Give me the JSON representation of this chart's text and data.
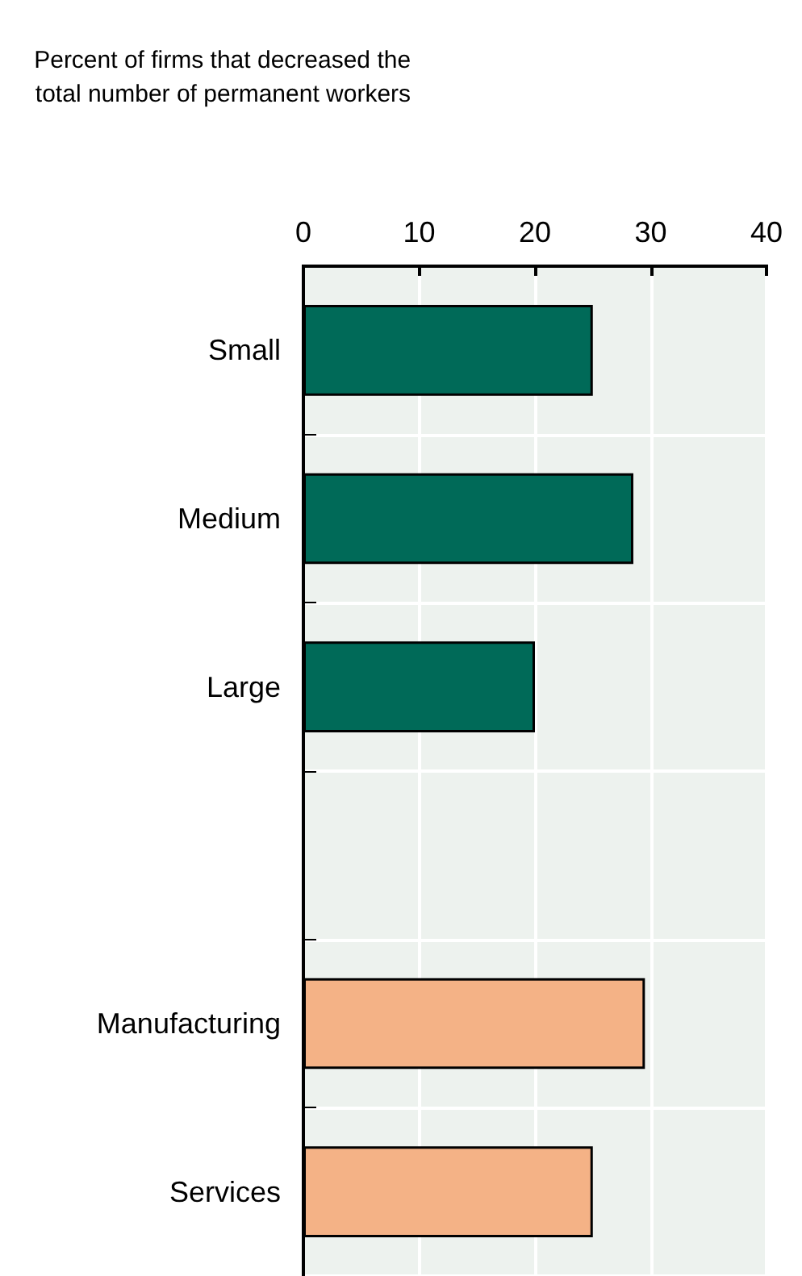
{
  "chart_data": {
    "type": "bar",
    "orientation": "horizontal",
    "title": "Percent of firms that decreased the\ntotal number of permanent workers",
    "categories": [
      "Small",
      "Medium",
      "Large",
      null,
      "Manufacturing",
      "Services"
    ],
    "values": [
      25,
      28.5,
      20,
      null,
      29.5,
      25
    ],
    "colors": [
      "#006a58",
      "#006a58",
      "#006a58",
      null,
      "#f4b286",
      "#f4b286"
    ],
    "xlim": [
      0,
      40
    ],
    "xticks": [
      0,
      10,
      20,
      30,
      40
    ],
    "grid": true
  }
}
